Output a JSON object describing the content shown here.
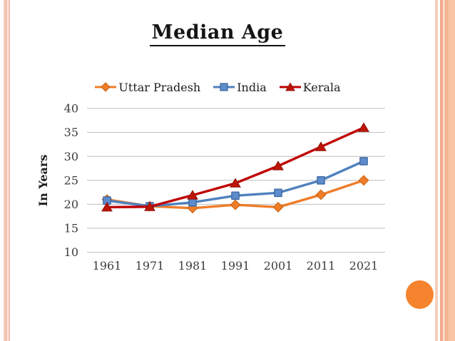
{
  "slide": {
    "decor": {
      "left_stripe_color": "#F2C4B2",
      "right_thin_stripe_color": "#F6CEBD",
      "right_accent_stripe_color": "#F2A98C",
      "right_band_color": "#F9C5A3",
      "circle_color": "#F6832D"
    }
  },
  "chart_data": {
    "type": "line",
    "title": "Median Age",
    "ylabel": "In Years",
    "x": [
      1961,
      1971,
      1981,
      1991,
      2001,
      2011,
      2021
    ],
    "ylim": [
      10,
      40
    ],
    "yticks": [
      40,
      35,
      30,
      25,
      20,
      15,
      10
    ],
    "grid": true,
    "gridline_color": "#BFBFBF",
    "legend_position": "top",
    "series": [
      {
        "name": "Uttar Pradesh",
        "marker": "diamond",
        "color": "#EF7D28",
        "marker_fill": "#EF7D28",
        "marker_stroke": "#C95F10",
        "values": [
          21.0,
          19.6,
          19.2,
          19.9,
          19.4,
          22.0,
          25.0
        ]
      },
      {
        "name": "India",
        "marker": "square",
        "color": "#4F81BD",
        "marker_fill": "#5E8BCB",
        "marker_stroke": "#38669C",
        "values": [
          20.8,
          19.6,
          20.4,
          21.8,
          22.4,
          25.0,
          29.0
        ]
      },
      {
        "name": "Kerala",
        "marker": "triangle",
        "color": "#C00000",
        "marker_fill": "#BE1508",
        "marker_stroke": "#8E1006",
        "values": [
          19.4,
          19.5,
          21.9,
          24.4,
          28.0,
          32.0,
          36.0
        ]
      }
    ]
  }
}
